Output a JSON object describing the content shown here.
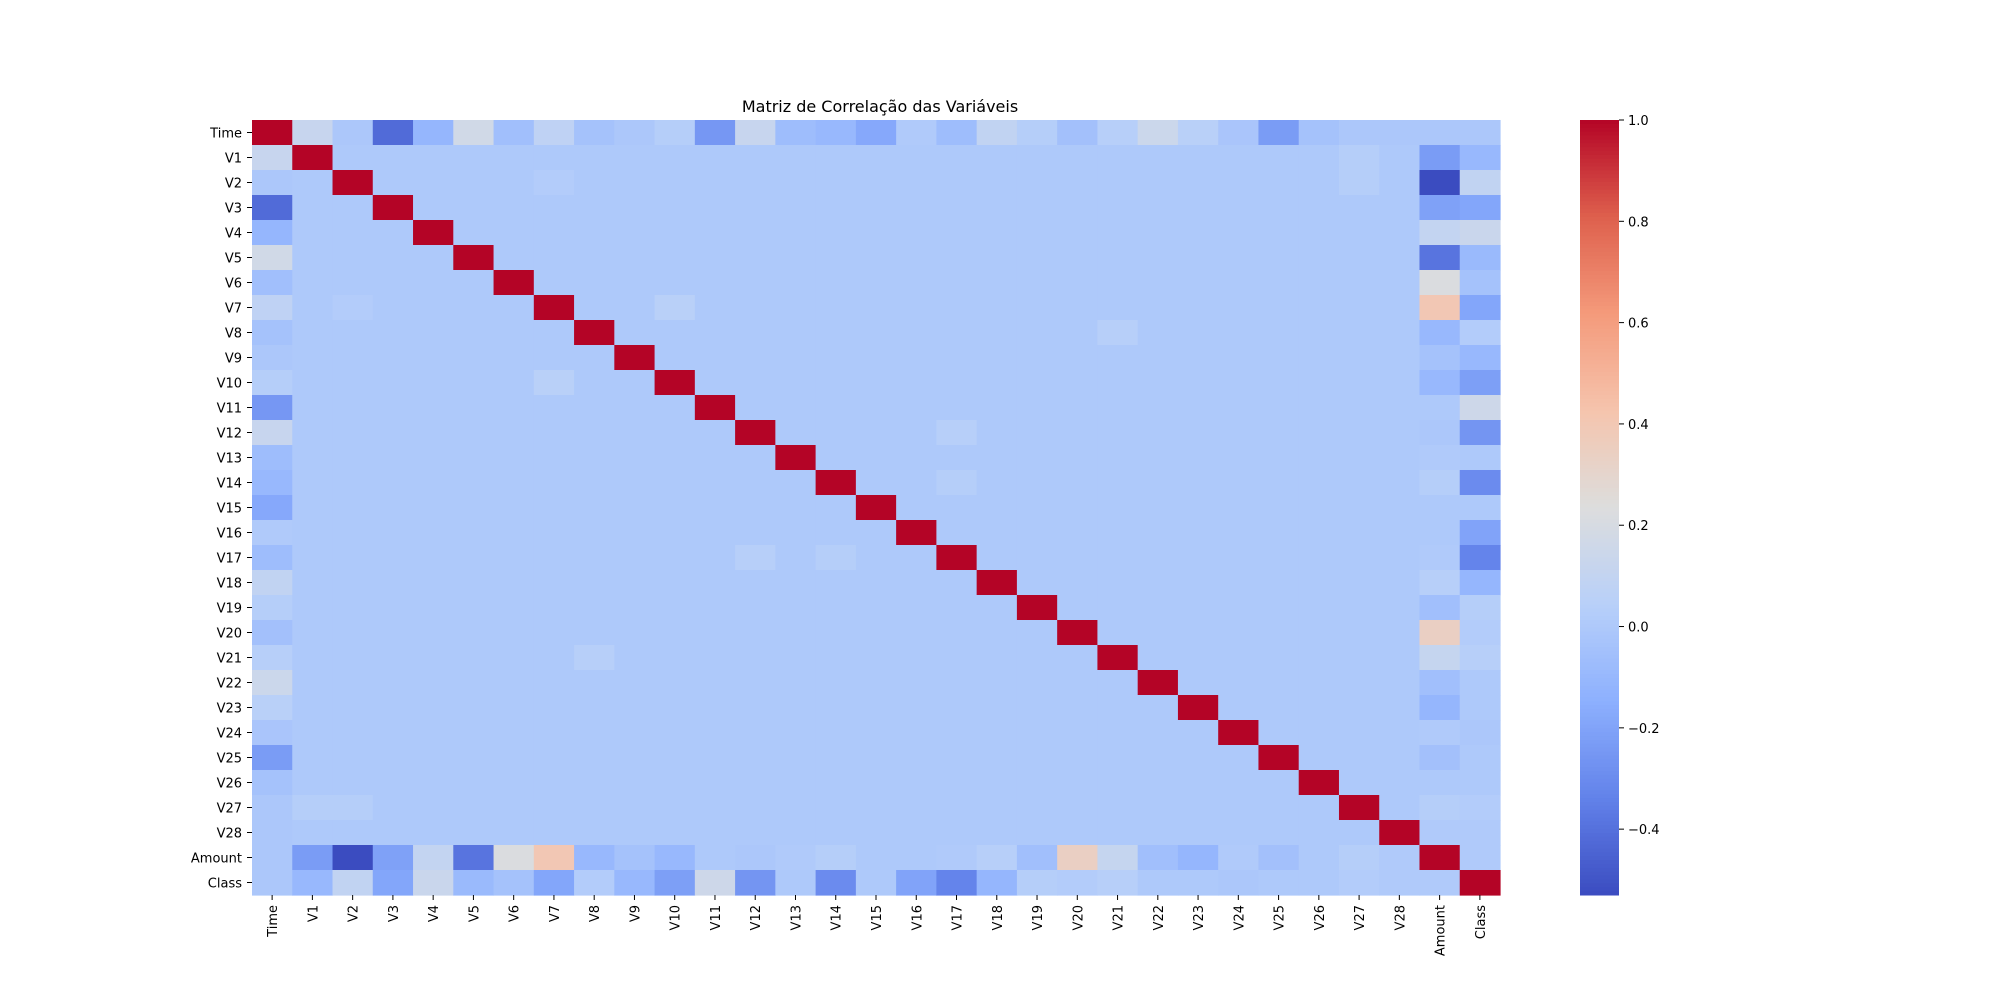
{
  "chart_data": {
    "type": "heatmap",
    "title": "Matriz de Correlação das Variáveis",
    "colormap": "coolwarm",
    "vmin": -0.53,
    "vmax": 1.0,
    "labels": [
      "Time",
      "V1",
      "V2",
      "V3",
      "V4",
      "V5",
      "V6",
      "V7",
      "V8",
      "V9",
      "V10",
      "V11",
      "V12",
      "V13",
      "V14",
      "V15",
      "V16",
      "V17",
      "V18",
      "V19",
      "V20",
      "V21",
      "V22",
      "V23",
      "V24",
      "V25",
      "V26",
      "V27",
      "V28",
      "Amount",
      "Class"
    ],
    "colorbar_ticks": [
      -0.4,
      -0.2,
      0.0,
      0.2,
      0.4,
      0.6,
      0.8,
      1.0
    ],
    "colorbar_tick_labels": [
      "−0.4",
      "−0.2",
      "0.0",
      "0.2",
      "0.4",
      "0.6",
      "0.8",
      "1.0"
    ],
    "row_time": [
      1.0,
      0.12,
      -0.01,
      -0.42,
      -0.11,
      0.17,
      -0.06,
      0.08,
      -0.04,
      -0.01,
      0.03,
      -0.25,
      0.12,
      -0.07,
      -0.1,
      -0.18,
      0.01,
      -0.07,
      0.09,
      0.03,
      -0.05,
      0.04,
      0.14,
      0.05,
      -0.02,
      -0.23,
      -0.04,
      -0.01,
      -0.01,
      -0.01,
      -0.01
    ],
    "row_amount": [
      -0.01,
      -0.23,
      -0.53,
      -0.21,
      0.1,
      -0.39,
      0.22,
      0.4,
      -0.1,
      -0.04,
      -0.1,
      0.0,
      -0.01,
      0.01,
      0.03,
      0.0,
      -0.0,
      0.01,
      0.04,
      -0.06,
      0.34,
      0.11,
      -0.06,
      -0.11,
      0.01,
      -0.05,
      -0.0,
      0.03,
      0.01,
      1.0,
      0.01
    ],
    "row_class": [
      -0.01,
      -0.1,
      0.09,
      -0.19,
      0.13,
      -0.09,
      -0.04,
      -0.19,
      0.02,
      -0.1,
      -0.22,
      0.15,
      -0.26,
      -0.0,
      -0.3,
      -0.0,
      -0.2,
      -0.33,
      -0.11,
      0.03,
      0.02,
      0.04,
      0.0,
      -0.0,
      -0.01,
      0.0,
      0.0,
      0.02,
      0.01,
      0.01,
      1.0
    ],
    "minor_pairs": [
      {
        "a": "V7",
        "b": "V10",
        "value": 0.05
      },
      {
        "a": "V12",
        "b": "V17",
        "value": 0.04
      },
      {
        "a": "V14",
        "b": "V17",
        "value": 0.03
      },
      {
        "a": "V8",
        "b": "V21",
        "value": 0.04
      },
      {
        "a": "V1",
        "b": "V27",
        "value": 0.03
      },
      {
        "a": "V2",
        "b": "V7",
        "value": 0.02
      },
      {
        "a": "V2",
        "b": "V27",
        "value": 0.03
      }
    ],
    "grid": false,
    "colorbar_position": "right"
  }
}
